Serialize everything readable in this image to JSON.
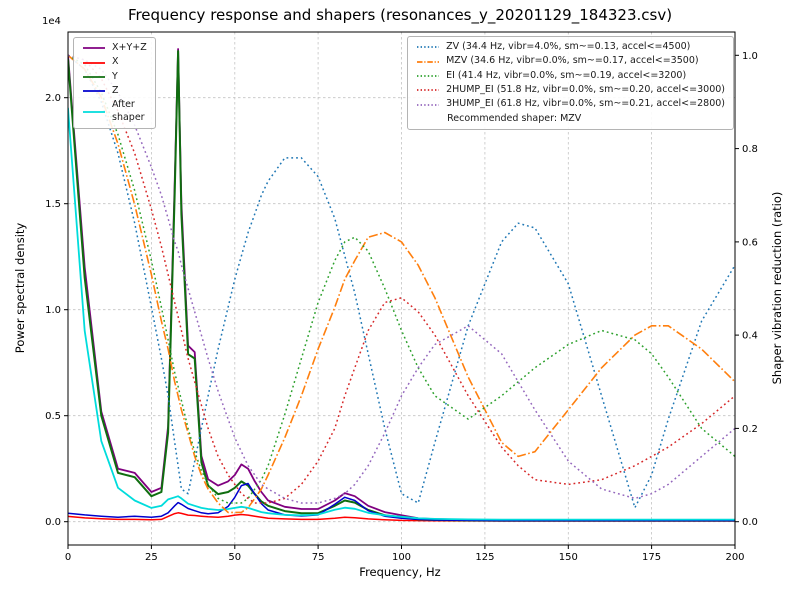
{
  "chart_data": {
    "type": "line",
    "title": "Frequency response and shapers (resonances_y_20201129_184323.csv)",
    "xlabel": "Frequency, Hz",
    "ylabel_left": "Power spectral density",
    "ylabel_right": "Shaper vibration reduction (ratio)",
    "offset_label": "1e4",
    "recommended": "Recommended shaper: MZV",
    "grid": true,
    "legend_left_position": "upper left",
    "legend_right_position": "upper right",
    "xlim": [
      0,
      200
    ],
    "ylim_left": [
      -1100,
      23100
    ],
    "ylim_right": [
      -0.05,
      1.05
    ],
    "xticks": [
      0,
      25,
      50,
      75,
      100,
      125,
      150,
      175,
      200
    ],
    "yticks_left_values": [
      0,
      5000,
      10000,
      15000,
      20000
    ],
    "yticks_left_labels": [
      "0.0",
      "0.5",
      "1.0",
      "1.5",
      "2.0"
    ],
    "yticks_right_values": [
      0.0,
      0.2,
      0.4,
      0.6,
      0.8,
      1.0
    ],
    "yticks_right_labels": [
      "0.0",
      "0.2",
      "0.4",
      "0.6",
      "0.8",
      "1.0"
    ],
    "x": [
      0,
      5,
      10,
      15,
      20,
      25,
      28,
      30,
      32,
      33,
      34,
      36,
      38,
      40,
      42,
      45,
      48,
      50,
      52,
      54,
      56,
      58,
      60,
      65,
      70,
      75,
      80,
      83,
      86,
      90,
      95,
      100,
      105,
      110,
      120,
      130,
      135,
      140,
      150,
      160,
      170,
      175,
      180,
      190,
      200
    ],
    "psd_series": [
      {
        "name": "xyz",
        "label": "X+Y+Z",
        "color": "#800080",
        "style": "solid",
        "width": 1.8,
        "values": [
          22000,
          12000,
          5200,
          2500,
          2300,
          1400,
          1600,
          4500,
          16000,
          22300,
          15000,
          8300,
          8000,
          3100,
          2000,
          1700,
          1900,
          2200,
          2700,
          2500,
          1900,
          1400,
          1000,
          700,
          600,
          600,
          1000,
          1350,
          1200,
          750,
          450,
          300,
          160,
          120,
          90,
          70,
          70,
          70,
          70,
          70,
          70,
          70,
          70,
          70,
          70
        ]
      },
      {
        "name": "x",
        "label": "X",
        "color": "#ff0000",
        "style": "solid",
        "width": 1.5,
        "values": [
          250,
          180,
          140,
          110,
          110,
          90,
          110,
          250,
          380,
          420,
          390,
          310,
          290,
          260,
          230,
          210,
          260,
          310,
          340,
          310,
          260,
          210,
          160,
          130,
          110,
          110,
          160,
          210,
          190,
          130,
          90,
          60,
          50,
          40,
          35,
          30,
          30,
          30,
          30,
          30,
          30,
          30,
          30,
          30,
          30
        ]
      },
      {
        "name": "y",
        "label": "Y",
        "color": "#0f6e0f",
        "style": "solid",
        "width": 2.0,
        "values": [
          21800,
          11500,
          5000,
          2300,
          2100,
          1200,
          1400,
          4200,
          15500,
          22200,
          14500,
          7900,
          7700,
          2800,
          1700,
          1300,
          1400,
          1600,
          1900,
          1700,
          1300,
          950,
          750,
          500,
          400,
          400,
          750,
          1000,
          900,
          550,
          300,
          200,
          110,
          80,
          60,
          50,
          50,
          50,
          50,
          50,
          50,
          50,
          50,
          50,
          50
        ]
      },
      {
        "name": "z",
        "label": "Z",
        "color": "#0000cd",
        "style": "solid",
        "width": 1.5,
        "values": [
          400,
          320,
          260,
          210,
          260,
          210,
          260,
          420,
          750,
          900,
          820,
          620,
          520,
          420,
          370,
          420,
          720,
          1150,
          1700,
          1800,
          1300,
          850,
          550,
          320,
          270,
          320,
          820,
          1150,
          1000,
          520,
          260,
          160,
          110,
          80,
          60,
          50,
          50,
          50,
          50,
          50,
          50,
          50,
          50,
          50,
          50
        ]
      },
      {
        "name": "after-shaper",
        "label": "After\nshaper",
        "color": "#00dcdc",
        "style": "solid",
        "width": 1.8,
        "values": [
          19500,
          9000,
          3800,
          1600,
          1000,
          650,
          750,
          1050,
          1150,
          1200,
          1100,
          850,
          750,
          650,
          600,
          550,
          600,
          650,
          700,
          650,
          550,
          450,
          400,
          320,
          300,
          340,
          560,
          660,
          610,
          420,
          300,
          230,
          160,
          130,
          110,
          100,
          100,
          100,
          100,
          100,
          100,
          100,
          100,
          100,
          100
        ]
      }
    ],
    "shaper_series": [
      {
        "name": "ZV",
        "label": "ZV (34.4 Hz, vibr=4.0%, sm~=0.13, accel<=4500)",
        "color": "#1f77b4",
        "style": "dotted",
        "width": 1.5,
        "values": [
          1.0,
          0.97,
          0.9,
          0.79,
          0.64,
          0.46,
          0.35,
          0.27,
          0.17,
          0.12,
          0.07,
          0.06,
          0.13,
          0.2,
          0.27,
          0.37,
          0.46,
          0.52,
          0.57,
          0.62,
          0.66,
          0.7,
          0.73,
          0.78,
          0.78,
          0.74,
          0.65,
          0.57,
          0.49,
          0.36,
          0.2,
          0.06,
          0.04,
          0.17,
          0.42,
          0.6,
          0.64,
          0.63,
          0.51,
          0.27,
          0.03,
          0.1,
          0.22,
          0.43,
          0.55
        ]
      },
      {
        "name": "MZV",
        "label": "MZV (34.6 Hz, vibr=0.0%, sm~=0.17, accel<=3500)",
        "color": "#ff7f0e",
        "style": "dashdot",
        "width": 1.6,
        "values": [
          1.0,
          0.97,
          0.91,
          0.81,
          0.68,
          0.53,
          0.43,
          0.37,
          0.3,
          0.27,
          0.24,
          0.19,
          0.14,
          0.1,
          0.07,
          0.04,
          0.02,
          0.02,
          0.02,
          0.03,
          0.05,
          0.07,
          0.1,
          0.18,
          0.27,
          0.37,
          0.46,
          0.52,
          0.56,
          0.61,
          0.62,
          0.6,
          0.55,
          0.48,
          0.31,
          0.17,
          0.14,
          0.15,
          0.24,
          0.33,
          0.4,
          0.42,
          0.42,
          0.37,
          0.3
        ]
      },
      {
        "name": "EI",
        "label": "EI (41.4 Hz, vibr=0.0%, sm~=0.19, accel<=3200)",
        "color": "#2ca02c",
        "style": "dotted",
        "width": 1.5,
        "values": [
          1.0,
          0.98,
          0.92,
          0.83,
          0.71,
          0.56,
          0.46,
          0.39,
          0.32,
          0.29,
          0.26,
          0.2,
          0.15,
          0.11,
          0.08,
          0.05,
          0.04,
          0.04,
          0.04,
          0.05,
          0.07,
          0.09,
          0.12,
          0.23,
          0.35,
          0.47,
          0.56,
          0.6,
          0.61,
          0.58,
          0.5,
          0.41,
          0.33,
          0.27,
          0.22,
          0.27,
          0.3,
          0.33,
          0.38,
          0.41,
          0.39,
          0.36,
          0.31,
          0.2,
          0.14
        ]
      },
      {
        "name": "2HUMP_EI",
        "label": "2HUMP_EI (51.8 Hz, vibr=0.0%, sm~=0.20, accel<=3000)",
        "color": "#d62728",
        "style": "dotted",
        "width": 1.5,
        "values": [
          1.0,
          0.99,
          0.95,
          0.88,
          0.79,
          0.67,
          0.59,
          0.53,
          0.47,
          0.44,
          0.41,
          0.35,
          0.3,
          0.25,
          0.2,
          0.14,
          0.1,
          0.08,
          0.06,
          0.05,
          0.04,
          0.04,
          0.04,
          0.05,
          0.08,
          0.13,
          0.2,
          0.27,
          0.33,
          0.41,
          0.47,
          0.48,
          0.45,
          0.4,
          0.27,
          0.16,
          0.12,
          0.09,
          0.08,
          0.09,
          0.12,
          0.14,
          0.16,
          0.21,
          0.27
        ]
      },
      {
        "name": "3HUMP_EI",
        "label": "3HUMP_EI (61.8 Hz, vibr=0.0%, sm~=0.21, accel<=2800)",
        "color": "#9467bd",
        "style": "dotted",
        "width": 1.5,
        "values": [
          1.0,
          0.99,
          0.97,
          0.92,
          0.85,
          0.76,
          0.7,
          0.65,
          0.6,
          0.58,
          0.55,
          0.5,
          0.45,
          0.4,
          0.35,
          0.28,
          0.22,
          0.18,
          0.15,
          0.12,
          0.1,
          0.08,
          0.07,
          0.05,
          0.04,
          0.04,
          0.05,
          0.06,
          0.08,
          0.12,
          0.19,
          0.27,
          0.33,
          0.38,
          0.42,
          0.36,
          0.3,
          0.24,
          0.13,
          0.07,
          0.05,
          0.06,
          0.08,
          0.14,
          0.2
        ]
      }
    ]
  }
}
